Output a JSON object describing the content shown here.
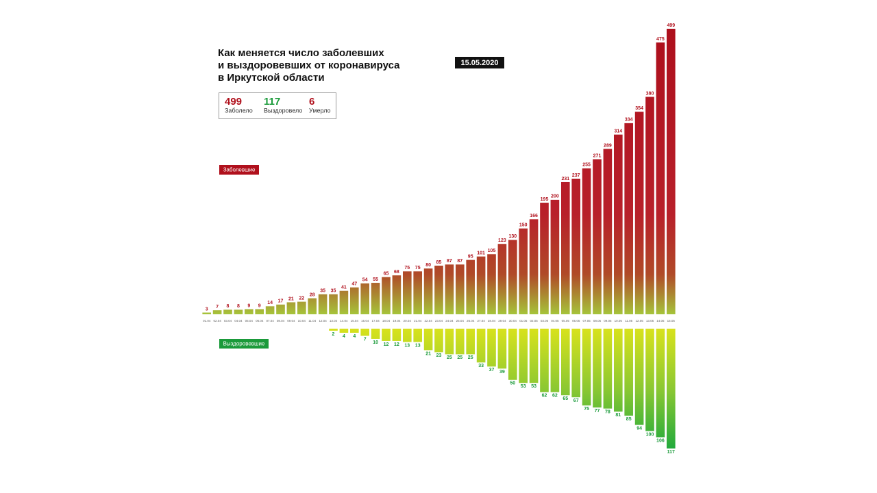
{
  "title": [
    "Как меняется число заболевших",
    "и выздоровевших от коронавируса",
    "в Иркутской области"
  ],
  "date": "15.05.2020",
  "summary": [
    {
      "value": 499,
      "label": "Заболело",
      "color": "#b0101c"
    },
    {
      "value": 117,
      "label": "Выздоровело",
      "color": "#1a9a3a"
    },
    {
      "value": 6,
      "label": "Умерло",
      "color": "#b0101c"
    }
  ],
  "chart_data": {
    "type": "bar",
    "categories": [
      "01.04",
      "02.04",
      "03.04",
      "04.04",
      "05.04",
      "06.04",
      "07.04",
      "08.04",
      "09.04",
      "10.04",
      "11.04",
      "12.04",
      "13.04",
      "14.04",
      "15.04",
      "16.04",
      "17.04",
      "18.04",
      "19.04",
      "20.04",
      "21.04",
      "22.04",
      "23.04",
      "24.04",
      "25.04",
      "26.04",
      "27.04",
      "28.04",
      "29.04",
      "30.04",
      "01.05",
      "02.05",
      "03.05",
      "04.05",
      "05.05",
      "06.05",
      "07.05",
      "08.05",
      "09.05",
      "10.05",
      "11.05",
      "12.05",
      "13.05",
      "14.05",
      "15.05"
    ],
    "series": [
      {
        "name": "Заболевшие",
        "color": "#b0101c",
        "values": [
          3,
          7,
          8,
          8,
          9,
          9,
          14,
          17,
          21,
          22,
          28,
          35,
          35,
          41,
          47,
          54,
          55,
          65,
          68,
          75,
          75,
          80,
          85,
          87,
          87,
          95,
          101,
          105,
          123,
          130,
          150,
          166,
          195,
          200,
          231,
          237,
          255,
          271,
          289,
          314,
          334,
          354,
          380,
          475,
          499
        ]
      },
      {
        "name": "Выздоровевшие",
        "color": "#1a9a3a",
        "values": [
          null,
          null,
          null,
          null,
          null,
          null,
          null,
          null,
          null,
          null,
          null,
          null,
          2,
          4,
          4,
          7,
          10,
          12,
          12,
          13,
          13,
          21,
          23,
          25,
          25,
          25,
          33,
          37,
          39,
          50,
          53,
          53,
          62,
          62,
          65,
          67,
          75,
          77,
          78,
          81,
          85,
          94,
          100,
          106,
          117
        ]
      }
    ]
  }
}
